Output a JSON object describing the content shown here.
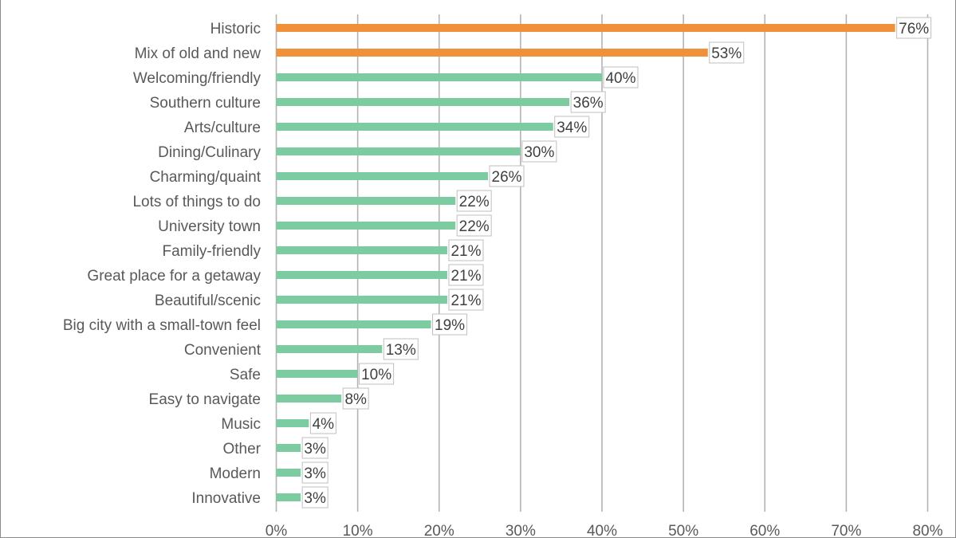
{
  "chart_data": {
    "type": "bar",
    "orientation": "horizontal",
    "title": "",
    "xlabel": "",
    "ylabel": "",
    "categories": [
      "Historic",
      "Mix of old and new",
      "Welcoming/friendly",
      "Southern culture",
      "Arts/culture",
      "Dining/Culinary",
      "Charming/quaint",
      "Lots of things to do",
      "University town",
      "Family-friendly",
      "Great place for a getaway",
      "Beautiful/scenic",
      "Big city with a small-town feel",
      "Convenient",
      "Safe",
      "Easy to navigate",
      "Music",
      "Other",
      "Modern",
      "Innovative"
    ],
    "values": [
      76,
      53,
      40,
      36,
      34,
      30,
      26,
      22,
      22,
      21,
      21,
      21,
      19,
      13,
      10,
      8,
      4,
      3,
      3,
      3
    ],
    "data_labels": [
      "76%",
      "53%",
      "40%",
      "36%",
      "34%",
      "30%",
      "26%",
      "22%",
      "22%",
      "21%",
      "21%",
      "21%",
      "19%",
      "13%",
      "10%",
      "8%",
      "4%",
      "3%",
      "3%",
      "3%"
    ],
    "highlight_count": 2,
    "xlim": [
      0,
      80
    ],
    "xticks": [
      0,
      10,
      20,
      30,
      40,
      50,
      60,
      70,
      80
    ],
    "xtick_labels": [
      "0%",
      "10%",
      "20%",
      "30%",
      "40%",
      "50%",
      "60%",
      "70%",
      "80%"
    ],
    "grid": "vertical",
    "legend": "none",
    "colors": {
      "highlight": "#f0913a",
      "default": "#7dcba0"
    }
  }
}
